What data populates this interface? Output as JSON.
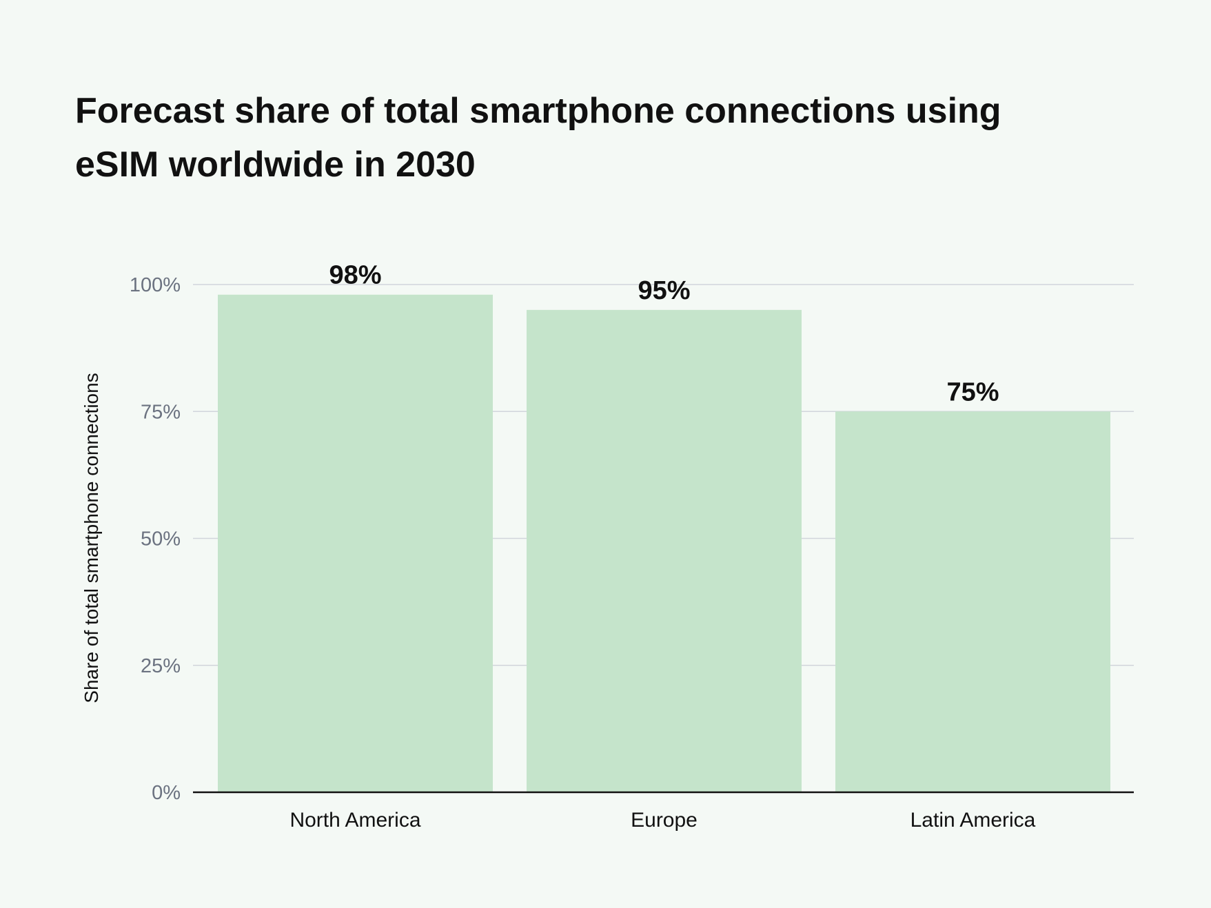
{
  "chart_data": {
    "type": "bar",
    "title": "Forecast share of total smartphone connections using eSIM worldwide in 2030",
    "xlabel": "",
    "ylabel": "Share of total smartphone connections",
    "categories": [
      "North America",
      "Europe",
      "Latin America"
    ],
    "values": [
      98,
      95,
      75
    ],
    "data_labels": [
      "98%",
      "95%",
      "75%"
    ],
    "ylim": [
      0,
      100
    ],
    "yticks": [
      0,
      25,
      50,
      75,
      100
    ],
    "ytick_labels": [
      "0%",
      "25%",
      "50%",
      "75%",
      "100%"
    ],
    "grid": true,
    "legend": "none",
    "colors": {
      "bar": "#c5e4cb",
      "grid": "#d1d5db",
      "axis": "#111111",
      "background": "#f4f9f5"
    }
  }
}
